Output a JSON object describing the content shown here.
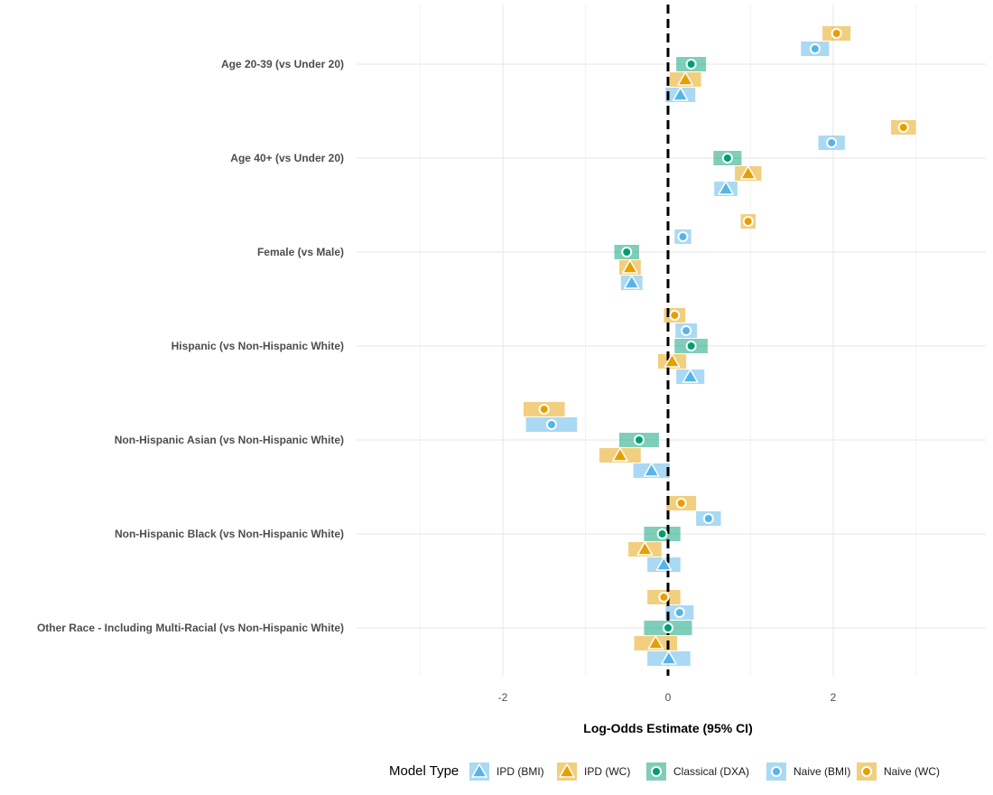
{
  "chart_data": {
    "type": "forest",
    "title": "",
    "xlabel": "Log-Odds Estimate (95% CI)",
    "ylabel": "",
    "xlim": [
      -3.0,
      3.8
    ],
    "x_ticks": [
      -2,
      0,
      2
    ],
    "reference_line": 0,
    "grid": true,
    "legend": {
      "title": "Model Type",
      "position": "bottom",
      "entries": [
        {
          "name": "IPD (BMI)",
          "color": "#56B4E9",
          "shape": "triangle"
        },
        {
          "name": "IPD (WC)",
          "color": "#E69F00",
          "shape": "triangle"
        },
        {
          "name": "Classical (DXA)",
          "color": "#009E73",
          "shape": "circle"
        },
        {
          "name": "Naive (BMI)",
          "color": "#56B4E9",
          "shape": "circle"
        },
        {
          "name": "Naive (WC)",
          "color": "#E69F00",
          "shape": "circle"
        }
      ]
    },
    "categories": [
      "Age 20-39 (vs Under 20)",
      "Age 40+ (vs Under 20)",
      "Female (vs Male)",
      "Hispanic (vs Non-Hispanic White)",
      "Non-Hispanic Asian (vs Non-Hispanic White)",
      "Non-Hispanic Black (vs Non-Hispanic White)",
      "Other Race - Including Multi-Racial (vs Non-Hispanic White)"
    ],
    "series": [
      {
        "name": "Naive (WC)",
        "offset": -2,
        "estimates": [
          2.04,
          2.85,
          0.97,
          0.08,
          -1.5,
          0.16,
          -0.05
        ],
        "lower": [
          1.87,
          2.7,
          0.88,
          -0.05,
          -1.75,
          -0.02,
          -0.25
        ],
        "upper": [
          2.21,
          3.0,
          1.06,
          0.21,
          -1.25,
          0.34,
          0.15
        ]
      },
      {
        "name": "Naive (BMI)",
        "offset": -1,
        "estimates": [
          1.78,
          1.98,
          0.18,
          0.22,
          -1.41,
          0.49,
          0.14
        ],
        "lower": [
          1.61,
          1.82,
          0.08,
          0.09,
          -1.72,
          0.34,
          -0.03
        ],
        "upper": [
          1.95,
          2.14,
          0.28,
          0.35,
          -1.1,
          0.64,
          0.31
        ]
      },
      {
        "name": "Classical (DXA)",
        "offset": 0,
        "estimates": [
          0.28,
          0.72,
          -0.5,
          0.28,
          -0.35,
          -0.07,
          0.0
        ],
        "lower": [
          0.1,
          0.55,
          -0.65,
          0.08,
          -0.59,
          -0.29,
          -0.29
        ],
        "upper": [
          0.46,
          0.89,
          -0.35,
          0.48,
          -0.11,
          0.15,
          0.29
        ]
      },
      {
        "name": "IPD (WC)",
        "offset": 1,
        "estimates": [
          0.21,
          0.97,
          -0.46,
          0.05,
          -0.58,
          -0.28,
          -0.15
        ],
        "lower": [
          0.02,
          0.81,
          -0.59,
          -0.12,
          -0.83,
          -0.48,
          -0.41
        ],
        "upper": [
          0.4,
          1.13,
          -0.33,
          0.22,
          -0.33,
          -0.08,
          0.11
        ]
      },
      {
        "name": "IPD (BMI)",
        "offset": 2,
        "estimates": [
          0.15,
          0.7,
          -0.44,
          0.27,
          -0.2,
          -0.05,
          0.01
        ],
        "lower": [
          -0.03,
          0.56,
          -0.57,
          0.1,
          -0.42,
          -0.25,
          -0.25
        ],
        "upper": [
          0.33,
          0.84,
          -0.31,
          0.44,
          0.02,
          0.15,
          0.27
        ]
      }
    ]
  }
}
